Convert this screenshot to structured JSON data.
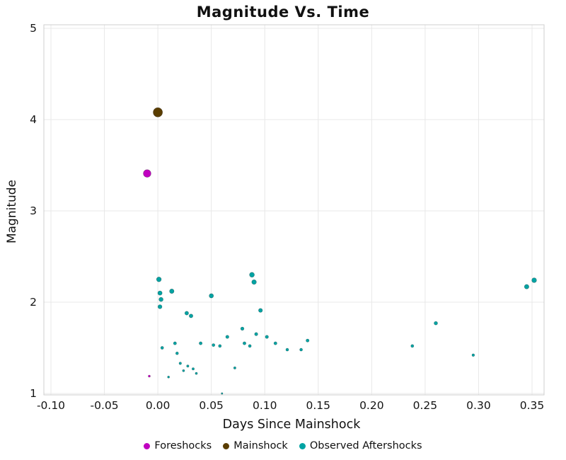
{
  "chart_data": {
    "type": "scatter",
    "title": "Magnitude Vs. Time",
    "xlabel": "Days Since Mainshock",
    "ylabel": "Magnitude",
    "xlim": [
      -0.1,
      0.35
    ],
    "ylim": [
      1,
      5
    ],
    "xticks": [
      -0.1,
      -0.05,
      0.0,
      0.05,
      0.1,
      0.15,
      0.2,
      0.25,
      0.3,
      0.35
    ],
    "xtick_labels": [
      "-0.10",
      "-0.05",
      "0.00",
      "0.05",
      "0.10",
      "0.15",
      "0.20",
      "0.25",
      "0.30",
      "0.35"
    ],
    "yticks": [
      1,
      2,
      3,
      4,
      5
    ],
    "ytick_labels": [
      "1",
      "2",
      "3",
      "4",
      "5"
    ],
    "grid": true,
    "grid_color": "#e8e8e8",
    "border_color": "#cfcfcf",
    "legend_position": "bottom",
    "series": [
      {
        "name": "Foreshocks",
        "color": "#c000c0",
        "points": [
          [
            -0.01,
            3.41
          ],
          [
            -0.008,
            1.19
          ]
        ]
      },
      {
        "name": "Mainshock",
        "color": "#5a3d00",
        "points": [
          [
            0.0,
            4.08
          ]
        ]
      },
      {
        "name": "Observed Aftershocks",
        "color": "#00a3a3",
        "points": [
          [
            0.001,
            2.25
          ],
          [
            0.002,
            2.1
          ],
          [
            0.003,
            2.03
          ],
          [
            0.002,
            1.95
          ],
          [
            0.004,
            1.5
          ],
          [
            0.01,
            1.18
          ],
          [
            0.013,
            2.12
          ],
          [
            0.016,
            1.55
          ],
          [
            0.018,
            1.44
          ],
          [
            0.021,
            1.33
          ],
          [
            0.024,
            1.25
          ],
          [
            0.027,
            1.88
          ],
          [
            0.028,
            1.3
          ],
          [
            0.031,
            1.85
          ],
          [
            0.033,
            1.27
          ],
          [
            0.036,
            1.22
          ],
          [
            0.04,
            1.55
          ],
          [
            0.05,
            2.07
          ],
          [
            0.052,
            1.53
          ],
          [
            0.058,
            1.52
          ],
          [
            0.06,
            1.0
          ],
          [
            0.065,
            1.62
          ],
          [
            0.072,
            1.28
          ],
          [
            0.079,
            1.71
          ],
          [
            0.081,
            1.55
          ],
          [
            0.086,
            1.52
          ],
          [
            0.088,
            2.3
          ],
          [
            0.09,
            2.22
          ],
          [
            0.092,
            1.65
          ],
          [
            0.096,
            1.91
          ],
          [
            0.102,
            1.62
          ],
          [
            0.11,
            1.55
          ],
          [
            0.121,
            1.48
          ],
          [
            0.134,
            1.48
          ],
          [
            0.14,
            1.58
          ],
          [
            0.238,
            1.52
          ],
          [
            0.26,
            1.77
          ],
          [
            0.295,
            1.42
          ],
          [
            0.345,
            2.17
          ],
          [
            0.352,
            2.24
          ]
        ]
      }
    ]
  }
}
